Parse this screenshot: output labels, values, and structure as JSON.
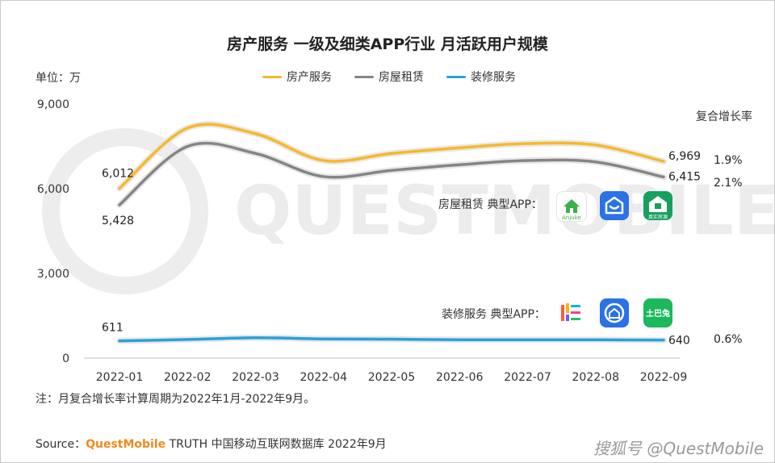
{
  "title": "房产服务 一级及细类APP行业 月活跃用户规模",
  "unit_label": "单位：万",
  "cagr_title": "复合增长率",
  "note": "注：月复合增长率计算周期为2022年1月-2022年9月。",
  "source": {
    "prefix": "Source：",
    "brand": "QuestMobile",
    "suffix": " TRUTH 中国移动互联网数据库 2022年9月"
  },
  "watermark_bg": "QUESTMOBILE",
  "watermark_corner": "搜狐号 @QuestMobile",
  "app_groups": [
    {
      "label": "房屋租赁 典型APP：",
      "apps": [
        {
          "name": "Anjuke",
          "icon": "anjuke-icon",
          "text": "Anjuke",
          "color": "#3bb14a"
        },
        {
          "name": "Beike",
          "icon": "beike-icon",
          "text": "",
          "color": "#2a72e5"
        },
        {
          "name": "Lianjia",
          "icon": "lianjia-icon",
          "text": "真实房源",
          "color": "#16a05d"
        }
      ]
    },
    {
      "label": "装修服务 典型APP：",
      "apps": [
        {
          "name": "Haohaozhu",
          "icon": "haohaozhu-icon",
          "text": "",
          "color": "#ffffff"
        },
        {
          "name": "Beike Home",
          "icon": "beike-home-icon",
          "text": "",
          "color": "#2a72e5"
        },
        {
          "name": "Tubatu",
          "icon": "tubatu-icon",
          "text": "土巴兔",
          "color": "#1cb85c"
        }
      ]
    }
  ],
  "chart_data": {
    "type": "line",
    "title": "房产服务 一级及细类APP行业 月活跃用户规模",
    "ylabel": "单位：万",
    "ylim": [
      0,
      9000
    ],
    "yticks": [
      0,
      3000,
      6000,
      9000
    ],
    "ytick_labels": [
      "0",
      "3,000",
      "6,000",
      "9,000"
    ],
    "categories": [
      "2022-01",
      "2022-02",
      "2022-03",
      "2022-04",
      "2022-05",
      "2022-06",
      "2022-07",
      "2022-08",
      "2022-09"
    ],
    "series": [
      {
        "name": "房产服务",
        "color": "#f7b928",
        "values": [
          6012,
          8150,
          7950,
          7000,
          7250,
          7450,
          7600,
          7550,
          6969
        ],
        "labels": {
          "0": "6,012",
          "8": "6,969"
        },
        "cagr": "1.9%"
      },
      {
        "name": "房屋租赁",
        "color": "#858585",
        "values": [
          5428,
          7500,
          7250,
          6430,
          6650,
          6850,
          7000,
          6950,
          6415
        ],
        "labels": {
          "0": "5,428",
          "8": "6,415"
        },
        "cagr": "2.1%"
      },
      {
        "name": "装修服务",
        "color": "#2aa1d6",
        "values": [
          611,
          660,
          720,
          680,
          670,
          650,
          650,
          650,
          640
        ],
        "labels": {
          "0": "611",
          "8": "640"
        },
        "cagr": "0.6%"
      }
    ],
    "legend_position": "top-center",
    "grid": false
  }
}
